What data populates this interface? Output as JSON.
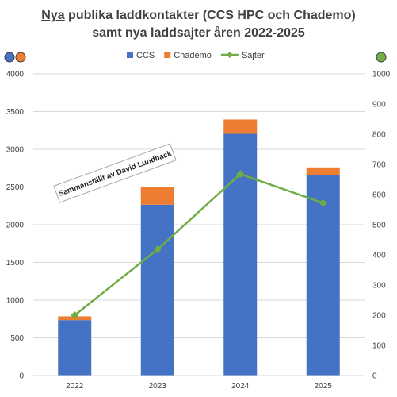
{
  "chart_data": {
    "type": "bar",
    "title_underlined": "Nya",
    "title_line1_rest": " publika laddkontakter (CCS HPC och Chademo)",
    "title_line2": "samt nya laddsajter åren 2022-2025",
    "categories": [
      "2022",
      "2023",
      "2024",
      "2025"
    ],
    "stacked": true,
    "series": [
      {
        "name": "CCS",
        "type": "bar",
        "axis": "left",
        "color": "#4472C4",
        "values": [
          735,
          2265,
          3205,
          2660
        ]
      },
      {
        "name": "Chademo",
        "type": "bar",
        "axis": "left",
        "color": "#ED7D31",
        "values": [
          50,
          230,
          190,
          100
        ]
      },
      {
        "name": "Sajter",
        "type": "line",
        "axis": "right",
        "color": "#70AD47",
        "values": [
          200,
          418,
          668,
          572
        ]
      }
    ],
    "y_left": {
      "min": 0,
      "max": 4000,
      "step": 500,
      "ticks": [
        "0",
        "500",
        "1000",
        "1500",
        "2000",
        "2500",
        "3000",
        "3500",
        "4000"
      ]
    },
    "y_right": {
      "min": 0,
      "max": 1000,
      "step": 100,
      "ticks": [
        "0",
        "100",
        "200",
        "300",
        "400",
        "500",
        "600",
        "700",
        "800",
        "900",
        "1000"
      ]
    },
    "grid": "horizontal",
    "legend_position": "top",
    "annotation": "Sammanställt av David Lundback",
    "axis_marker_colors": {
      "left": [
        "#4472C4",
        "#ED7D31"
      ],
      "right": [
        "#70AD47"
      ]
    }
  }
}
